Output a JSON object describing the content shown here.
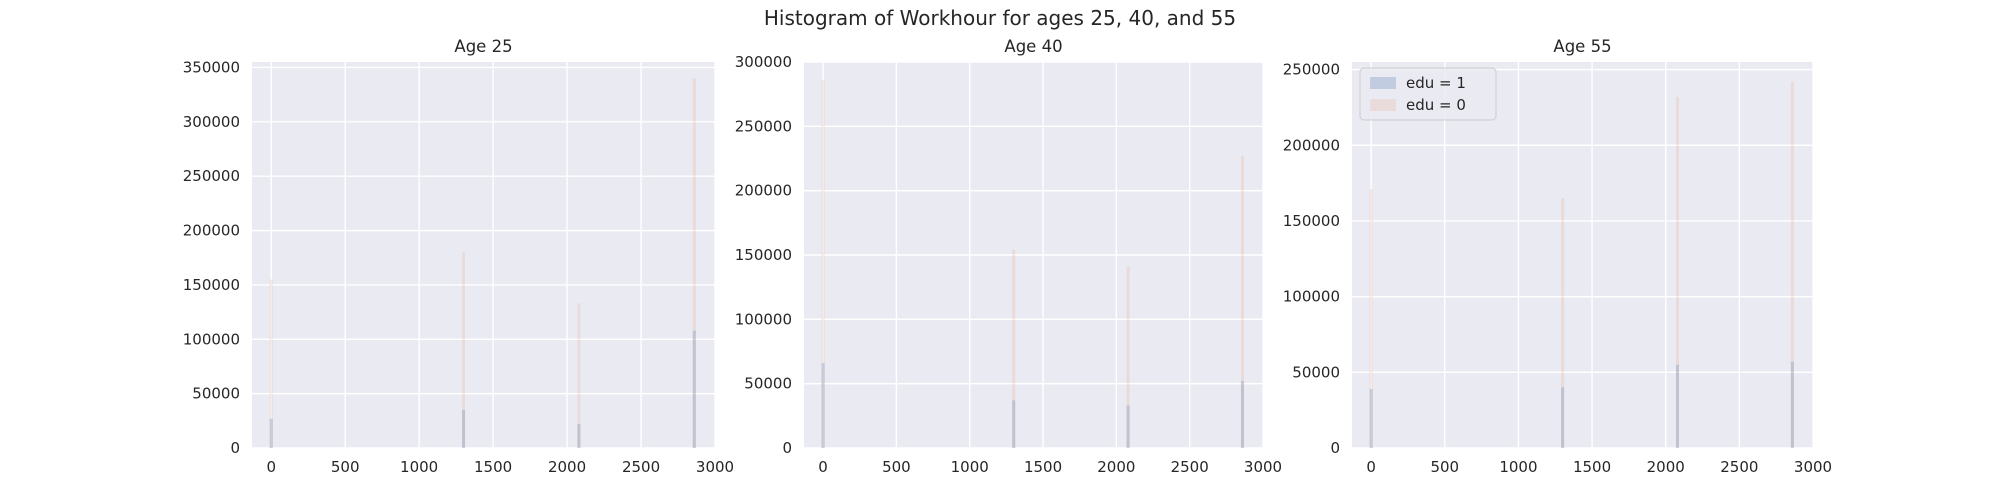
{
  "figure_title": "Histogram of Workhour for ages 25, 40, and 55",
  "colors": {
    "plot_bg": "#eaeaf2",
    "grid": "#ffffff",
    "edu1": "#4c72b0",
    "edu0": "#dd8452"
  },
  "chart_data": [
    {
      "type": "bar",
      "title": "Age 25",
      "xlabel": "",
      "ylabel": "",
      "xlim": [
        -130,
        3000
      ],
      "ylim": [
        0,
        355000
      ],
      "xticks": [
        0,
        500,
        1000,
        1500,
        2000,
        2500,
        3000
      ],
      "yticks": [
        0,
        50000,
        100000,
        150000,
        200000,
        250000,
        300000,
        350000
      ],
      "grid": true,
      "legend": null,
      "series": [
        {
          "name": "edu = 1",
          "x": [
            0,
            1300,
            2080,
            2860
          ],
          "values": [
            27000,
            35000,
            22000,
            108000
          ]
        },
        {
          "name": "edu = 0",
          "x": [
            0,
            1300,
            2080,
            2860
          ],
          "values": [
            155000,
            180000,
            133000,
            340000
          ]
        }
      ]
    },
    {
      "type": "bar",
      "title": "Age 40",
      "xlabel": "",
      "ylabel": "",
      "xlim": [
        -130,
        3000
      ],
      "ylim": [
        0,
        300000
      ],
      "xticks": [
        0,
        500,
        1000,
        1500,
        2000,
        2500,
        3000
      ],
      "yticks": [
        0,
        50000,
        100000,
        150000,
        200000,
        250000,
        300000
      ],
      "grid": true,
      "legend": null,
      "series": [
        {
          "name": "edu = 1",
          "x": [
            0,
            1300,
            2080,
            2860
          ],
          "values": [
            66000,
            37000,
            33000,
            52000
          ]
        },
        {
          "name": "edu = 0",
          "x": [
            0,
            1300,
            2080,
            2860
          ],
          "values": [
            286000,
            154000,
            141000,
            227000
          ]
        }
      ]
    },
    {
      "type": "bar",
      "title": "Age 55",
      "xlabel": "",
      "ylabel": "",
      "xlim": [
        -130,
        3000
      ],
      "ylim": [
        0,
        255000
      ],
      "xticks": [
        0,
        500,
        1000,
        1500,
        2000,
        2500,
        3000
      ],
      "yticks": [
        0,
        50000,
        100000,
        150000,
        200000,
        250000
      ],
      "grid": true,
      "legend": "top-left",
      "series": [
        {
          "name": "edu = 1",
          "x": [
            0,
            1300,
            2080,
            2860
          ],
          "values": [
            39000,
            40000,
            55000,
            57000
          ]
        },
        {
          "name": "edu = 0",
          "x": [
            0,
            1300,
            2080,
            2860
          ],
          "values": [
            171000,
            165000,
            232000,
            242000
          ]
        }
      ]
    }
  ]
}
